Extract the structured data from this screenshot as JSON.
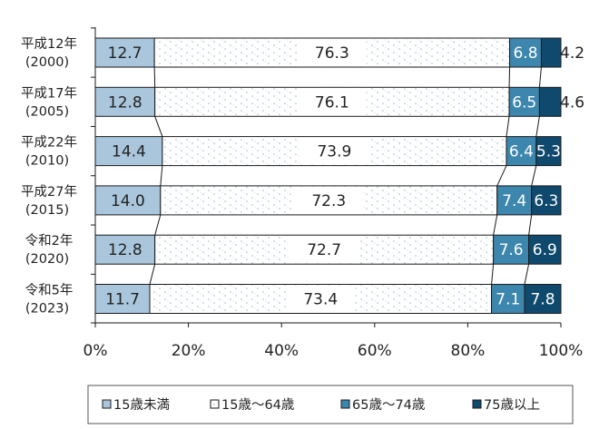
{
  "chart_data": {
    "type": "bar",
    "orientation": "horizontal",
    "stacked": "percent",
    "categories": [
      [
        "平成12年",
        "(2000)"
      ],
      [
        "平成17年",
        "(2005)"
      ],
      [
        "平成22年",
        "(2010)"
      ],
      [
        "平成27年",
        "(2015)"
      ],
      [
        "令和2年",
        "(2020)"
      ],
      [
        "令和5年",
        "(2023)"
      ]
    ],
    "series": [
      {
        "name": "15歳未満",
        "values": [
          12.7,
          12.8,
          14.4,
          14.0,
          12.8,
          11.7
        ],
        "labels": [
          "12.7",
          "12.8",
          "14.4",
          "14.0",
          "12.8",
          "11.7"
        ],
        "color": "#a9c6dc",
        "pattern": "none"
      },
      {
        "name": "15歳～64歳",
        "values": [
          76.3,
          76.1,
          73.9,
          72.3,
          72.7,
          73.4
        ],
        "labels": [
          "76.3",
          "76.1",
          "73.9",
          "72.3",
          "72.7",
          "73.4"
        ],
        "color": "#ffffff",
        "pattern": "dots"
      },
      {
        "name": "65歳～74歳",
        "values": [
          6.8,
          6.5,
          6.4,
          7.4,
          7.6,
          7.1
        ],
        "labels": [
          "6.8",
          "6.5",
          "6.4",
          "7.4",
          "7.6",
          "7.1"
        ],
        "color": "#3d86ae",
        "pattern": "none"
      },
      {
        "name": "75歳以上",
        "values": [
          4.2,
          4.6,
          5.3,
          6.3,
          6.9,
          7.8
        ],
        "labels": [
          "4.2",
          "4.6",
          "5.3",
          "6.3",
          "6.9",
          "7.8"
        ],
        "color": "#0f4a6e",
        "pattern": "none"
      }
    ],
    "xlim": [
      0,
      100
    ],
    "xticks": [
      "0%",
      "20%",
      "40%",
      "60%",
      "80%",
      "100%"
    ],
    "grid": false,
    "series_connector_lines": true,
    "legend_position": "bottom"
  }
}
